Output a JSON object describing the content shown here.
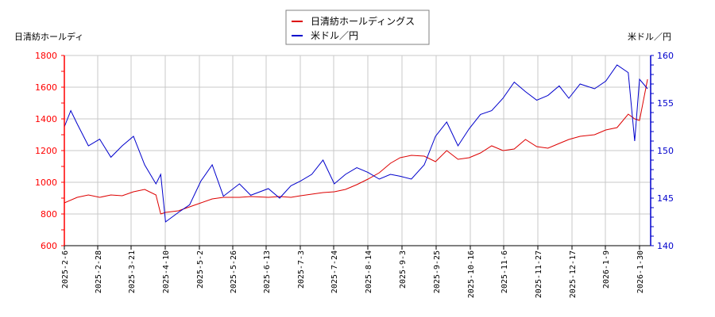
{
  "chart_data": {
    "type": "line",
    "title": "",
    "legend": {
      "position": "top-center",
      "entries": [
        {
          "label": "日清紡ホールディングス",
          "color": "#dd0000"
        },
        {
          "label": "米ドル／円",
          "color": "#0000cc"
        }
      ]
    },
    "left_axis": {
      "label": "日清紡ホールディ",
      "color": "#ff0000",
      "ylim": [
        600,
        1800
      ],
      "ticks": [
        600,
        800,
        1000,
        1200,
        1400,
        1600,
        1800
      ]
    },
    "right_axis": {
      "label": "米ドル／円",
      "color": "#0000cc",
      "ylim": [
        140,
        160
      ],
      "ticks": [
        140,
        145,
        150,
        155,
        160
      ]
    },
    "x_tick_labels": [
      "2025-2-6",
      "2025-2-28",
      "2025-3-21",
      "2025-4-10",
      "2025-5-2",
      "2025-5-26",
      "2025-6-13",
      "2025-7-3",
      "2025-7-24",
      "2025-8-14",
      "2025-9-3",
      "2025-9-25",
      "2025-10-16",
      "2025-11-6",
      "2025-11-27",
      "2025-12-17",
      "2026-1-9",
      "2026-1-30"
    ],
    "grid": true,
    "series": [
      {
        "name": "日清紡ホールディングス",
        "axis": "left",
        "color": "#dd0000",
        "x": [
          "2025-2-6",
          "2025-2-14",
          "2025-2-21",
          "2025-2-28",
          "2025-3-7",
          "2025-3-14",
          "2025-3-21",
          "2025-3-28",
          "2025-4-4",
          "2025-4-7",
          "2025-4-10",
          "2025-4-18",
          "2025-4-25",
          "2025-5-2",
          "2025-5-9",
          "2025-5-16",
          "2025-5-26",
          "2025-6-2",
          "2025-6-13",
          "2025-6-20",
          "2025-6-27",
          "2025-7-3",
          "2025-7-10",
          "2025-7-17",
          "2025-7-24",
          "2025-7-31",
          "2025-8-7",
          "2025-8-14",
          "2025-8-21",
          "2025-8-28",
          "2025-9-3",
          "2025-9-10",
          "2025-9-18",
          "2025-9-25",
          "2025-10-2",
          "2025-10-9",
          "2025-10-16",
          "2025-10-23",
          "2025-10-30",
          "2025-11-6",
          "2025-11-13",
          "2025-11-20",
          "2025-11-27",
          "2025-12-4",
          "2025-12-11",
          "2025-12-17",
          "2025-12-24",
          "2026-1-2",
          "2026-1-9",
          "2026-1-16",
          "2026-1-23",
          "2026-1-27",
          "2026-1-30",
          "2026-2-4"
        ],
        "values": [
          870,
          905,
          920,
          905,
          920,
          915,
          940,
          955,
          920,
          800,
          810,
          820,
          845,
          870,
          895,
          905,
          905,
          910,
          905,
          910,
          905,
          915,
          925,
          935,
          940,
          955,
          985,
          1020,
          1060,
          1120,
          1155,
          1170,
          1165,
          1130,
          1200,
          1145,
          1155,
          1185,
          1230,
          1200,
          1210,
          1270,
          1225,
          1215,
          1245,
          1270,
          1290,
          1300,
          1330,
          1345,
          1430,
          1400,
          1390,
          1650
        ]
      },
      {
        "name": "米ドル／円",
        "axis": "right",
        "color": "#0000cc",
        "x": [
          "2025-2-6",
          "2025-2-10",
          "2025-2-14",
          "2025-2-21",
          "2025-2-28",
          "2025-3-7",
          "2025-3-14",
          "2025-3-21",
          "2025-3-28",
          "2025-4-4",
          "2025-4-7",
          "2025-4-10",
          "2025-4-18",
          "2025-4-25",
          "2025-5-2",
          "2025-5-9",
          "2025-5-16",
          "2025-5-26",
          "2025-6-2",
          "2025-6-13",
          "2025-6-20",
          "2025-6-27",
          "2025-7-3",
          "2025-7-10",
          "2025-7-17",
          "2025-7-24",
          "2025-7-31",
          "2025-8-7",
          "2025-8-14",
          "2025-8-21",
          "2025-8-28",
          "2025-9-3",
          "2025-9-10",
          "2025-9-18",
          "2025-9-25",
          "2025-10-2",
          "2025-10-9",
          "2025-10-16",
          "2025-10-23",
          "2025-10-30",
          "2025-11-6",
          "2025-11-13",
          "2025-11-20",
          "2025-11-27",
          "2025-12-4",
          "2025-12-11",
          "2025-12-17",
          "2025-12-24",
          "2026-1-2",
          "2026-1-9",
          "2026-1-16",
          "2026-1-23",
          "2026-1-27",
          "2026-1-30",
          "2026-2-4"
        ],
        "values": [
          152.5,
          154.2,
          152.8,
          150.5,
          151.2,
          149.3,
          150.5,
          151.5,
          148.5,
          146.5,
          147.5,
          142.5,
          143.5,
          144.3,
          146.8,
          148.5,
          145.2,
          146.5,
          145.3,
          146.0,
          145.0,
          146.3,
          146.8,
          147.5,
          149.0,
          146.5,
          147.5,
          148.2,
          147.7,
          147.0,
          147.5,
          147.3,
          147.0,
          148.5,
          151.5,
          153.0,
          150.5,
          152.3,
          153.8,
          154.2,
          155.5,
          157.2,
          156.2,
          155.3,
          155.8,
          156.8,
          155.5,
          157.0,
          156.5,
          157.3,
          159.0,
          158.2,
          151.0,
          157.5,
          156.5
        ]
      }
    ]
  }
}
